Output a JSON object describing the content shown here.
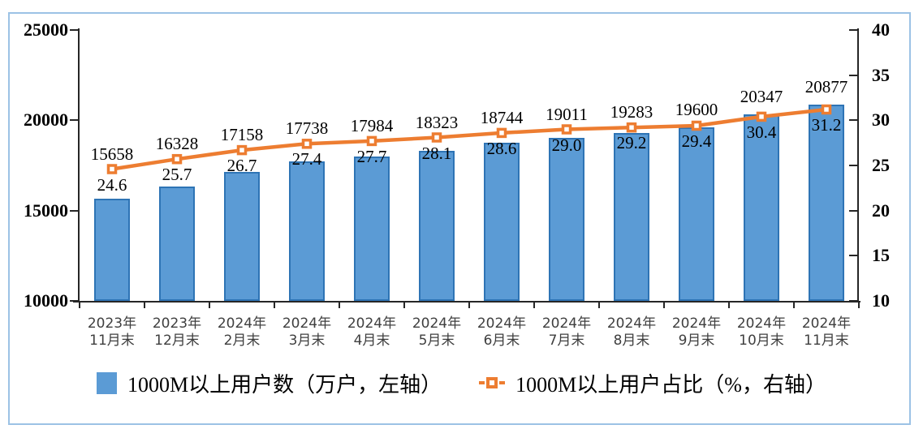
{
  "chart_data": {
    "type": "bar",
    "combo": "bar+line dual axis",
    "title": "",
    "categories": [
      "2023年|11月末",
      "2023年|12月末",
      "2024年|2月末",
      "2024年|3月末",
      "2024年|4月末",
      "2024年|5月末",
      "2024年|6月末",
      "2024年|7月末",
      "2024年|8月末",
      "2024年|9月末",
      "2024年|10月末",
      "2024年|11月末"
    ],
    "series": [
      {
        "name": "1000M以上用户数（万户，左轴）",
        "type": "bar",
        "axis": "left",
        "values": [
          15658,
          16328,
          17158,
          17738,
          17984,
          18323,
          18744,
          19011,
          19283,
          19600,
          20347,
          20877
        ],
        "labels": [
          "15658",
          "16328",
          "17158",
          "17738",
          "17984",
          "18323",
          "18744",
          "19011",
          "19283",
          "19600",
          "20347",
          "20877"
        ]
      },
      {
        "name": "1000M以上用户占比（%，右轴）",
        "type": "line",
        "axis": "right",
        "values": [
          24.6,
          25.7,
          26.7,
          27.4,
          27.7,
          28.1,
          28.6,
          29.0,
          29.2,
          29.4,
          30.4,
          31.2
        ],
        "labels": [
          "24.6",
          "25.7",
          "26.7",
          "27.4",
          "27.7",
          "28.1",
          "28.6",
          "29.0",
          "29.2",
          "29.4",
          "30.4",
          "31.2"
        ]
      }
    ],
    "left_axis": {
      "min": 10000,
      "max": 25000,
      "step": 5000,
      "ticks": [
        25000,
        20000,
        15000,
        10000
      ]
    },
    "right_axis": {
      "min": 10,
      "max": 40,
      "step": 5,
      "ticks": [
        40,
        35,
        30,
        25,
        20,
        15,
        10
      ]
    },
    "grid": false,
    "legend_position": "bottom"
  },
  "legend": {
    "bar_label": "1000M以上用户数（万户，左轴）",
    "line_label": "1000M以上用户占比（%，右轴）"
  },
  "colors": {
    "bar_fill": "#5B9BD5",
    "bar_border": "#2E74B5",
    "line": "#ED7D31",
    "marker_fill": "#FFFFFF",
    "frame_border": "#9CC2E5",
    "axis_line": "#262626",
    "x_label_text": "#3F3F3F",
    "label_text": "#000000"
  }
}
